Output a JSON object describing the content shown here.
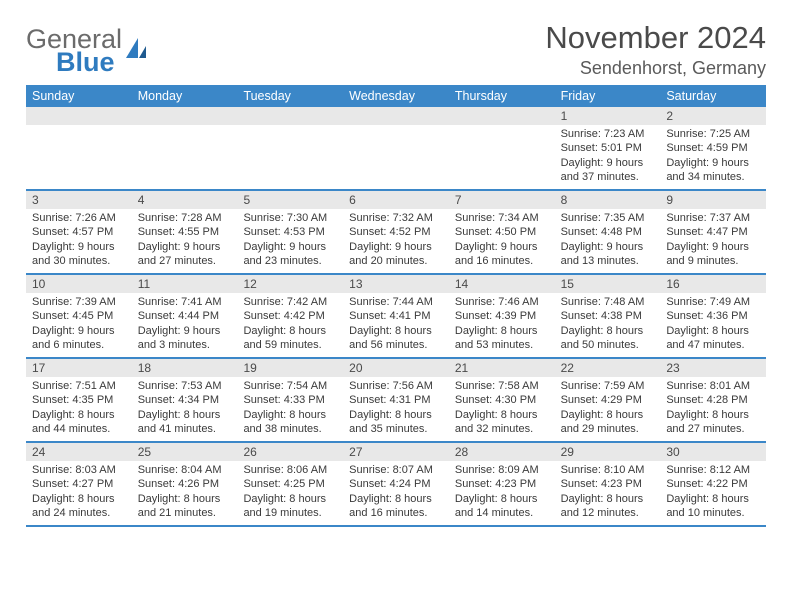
{
  "brand": {
    "line1": "General",
    "line2": "Blue"
  },
  "title": "November 2024",
  "location": "Sendenhorst, Germany",
  "colors": {
    "header_bg": "#3b87c8",
    "header_text": "#ffffff",
    "date_band": "#e8e8e8",
    "border": "#3b87c8",
    "text": "#3a3a3a"
  },
  "day_names": [
    "Sunday",
    "Monday",
    "Tuesday",
    "Wednesday",
    "Thursday",
    "Friday",
    "Saturday"
  ],
  "weeks": [
    [
      null,
      null,
      null,
      null,
      null,
      {
        "d": "1",
        "sr": "Sunrise: 7:23 AM",
        "ss": "Sunset: 5:01 PM",
        "dl1": "Daylight: 9 hours",
        "dl2": "and 37 minutes."
      },
      {
        "d": "2",
        "sr": "Sunrise: 7:25 AM",
        "ss": "Sunset: 4:59 PM",
        "dl1": "Daylight: 9 hours",
        "dl2": "and 34 minutes."
      }
    ],
    [
      {
        "d": "3",
        "sr": "Sunrise: 7:26 AM",
        "ss": "Sunset: 4:57 PM",
        "dl1": "Daylight: 9 hours",
        "dl2": "and 30 minutes."
      },
      {
        "d": "4",
        "sr": "Sunrise: 7:28 AM",
        "ss": "Sunset: 4:55 PM",
        "dl1": "Daylight: 9 hours",
        "dl2": "and 27 minutes."
      },
      {
        "d": "5",
        "sr": "Sunrise: 7:30 AM",
        "ss": "Sunset: 4:53 PM",
        "dl1": "Daylight: 9 hours",
        "dl2": "and 23 minutes."
      },
      {
        "d": "6",
        "sr": "Sunrise: 7:32 AM",
        "ss": "Sunset: 4:52 PM",
        "dl1": "Daylight: 9 hours",
        "dl2": "and 20 minutes."
      },
      {
        "d": "7",
        "sr": "Sunrise: 7:34 AM",
        "ss": "Sunset: 4:50 PM",
        "dl1": "Daylight: 9 hours",
        "dl2": "and 16 minutes."
      },
      {
        "d": "8",
        "sr": "Sunrise: 7:35 AM",
        "ss": "Sunset: 4:48 PM",
        "dl1": "Daylight: 9 hours",
        "dl2": "and 13 minutes."
      },
      {
        "d": "9",
        "sr": "Sunrise: 7:37 AM",
        "ss": "Sunset: 4:47 PM",
        "dl1": "Daylight: 9 hours",
        "dl2": "and 9 minutes."
      }
    ],
    [
      {
        "d": "10",
        "sr": "Sunrise: 7:39 AM",
        "ss": "Sunset: 4:45 PM",
        "dl1": "Daylight: 9 hours",
        "dl2": "and 6 minutes."
      },
      {
        "d": "11",
        "sr": "Sunrise: 7:41 AM",
        "ss": "Sunset: 4:44 PM",
        "dl1": "Daylight: 9 hours",
        "dl2": "and 3 minutes."
      },
      {
        "d": "12",
        "sr": "Sunrise: 7:42 AM",
        "ss": "Sunset: 4:42 PM",
        "dl1": "Daylight: 8 hours",
        "dl2": "and 59 minutes."
      },
      {
        "d": "13",
        "sr": "Sunrise: 7:44 AM",
        "ss": "Sunset: 4:41 PM",
        "dl1": "Daylight: 8 hours",
        "dl2": "and 56 minutes."
      },
      {
        "d": "14",
        "sr": "Sunrise: 7:46 AM",
        "ss": "Sunset: 4:39 PM",
        "dl1": "Daylight: 8 hours",
        "dl2": "and 53 minutes."
      },
      {
        "d": "15",
        "sr": "Sunrise: 7:48 AM",
        "ss": "Sunset: 4:38 PM",
        "dl1": "Daylight: 8 hours",
        "dl2": "and 50 minutes."
      },
      {
        "d": "16",
        "sr": "Sunrise: 7:49 AM",
        "ss": "Sunset: 4:36 PM",
        "dl1": "Daylight: 8 hours",
        "dl2": "and 47 minutes."
      }
    ],
    [
      {
        "d": "17",
        "sr": "Sunrise: 7:51 AM",
        "ss": "Sunset: 4:35 PM",
        "dl1": "Daylight: 8 hours",
        "dl2": "and 44 minutes."
      },
      {
        "d": "18",
        "sr": "Sunrise: 7:53 AM",
        "ss": "Sunset: 4:34 PM",
        "dl1": "Daylight: 8 hours",
        "dl2": "and 41 minutes."
      },
      {
        "d": "19",
        "sr": "Sunrise: 7:54 AM",
        "ss": "Sunset: 4:33 PM",
        "dl1": "Daylight: 8 hours",
        "dl2": "and 38 minutes."
      },
      {
        "d": "20",
        "sr": "Sunrise: 7:56 AM",
        "ss": "Sunset: 4:31 PM",
        "dl1": "Daylight: 8 hours",
        "dl2": "and 35 minutes."
      },
      {
        "d": "21",
        "sr": "Sunrise: 7:58 AM",
        "ss": "Sunset: 4:30 PM",
        "dl1": "Daylight: 8 hours",
        "dl2": "and 32 minutes."
      },
      {
        "d": "22",
        "sr": "Sunrise: 7:59 AM",
        "ss": "Sunset: 4:29 PM",
        "dl1": "Daylight: 8 hours",
        "dl2": "and 29 minutes."
      },
      {
        "d": "23",
        "sr": "Sunrise: 8:01 AM",
        "ss": "Sunset: 4:28 PM",
        "dl1": "Daylight: 8 hours",
        "dl2": "and 27 minutes."
      }
    ],
    [
      {
        "d": "24",
        "sr": "Sunrise: 8:03 AM",
        "ss": "Sunset: 4:27 PM",
        "dl1": "Daylight: 8 hours",
        "dl2": "and 24 minutes."
      },
      {
        "d": "25",
        "sr": "Sunrise: 8:04 AM",
        "ss": "Sunset: 4:26 PM",
        "dl1": "Daylight: 8 hours",
        "dl2": "and 21 minutes."
      },
      {
        "d": "26",
        "sr": "Sunrise: 8:06 AM",
        "ss": "Sunset: 4:25 PM",
        "dl1": "Daylight: 8 hours",
        "dl2": "and 19 minutes."
      },
      {
        "d": "27",
        "sr": "Sunrise: 8:07 AM",
        "ss": "Sunset: 4:24 PM",
        "dl1": "Daylight: 8 hours",
        "dl2": "and 16 minutes."
      },
      {
        "d": "28",
        "sr": "Sunrise: 8:09 AM",
        "ss": "Sunset: 4:23 PM",
        "dl1": "Daylight: 8 hours",
        "dl2": "and 14 minutes."
      },
      {
        "d": "29",
        "sr": "Sunrise: 8:10 AM",
        "ss": "Sunset: 4:23 PM",
        "dl1": "Daylight: 8 hours",
        "dl2": "and 12 minutes."
      },
      {
        "d": "30",
        "sr": "Sunrise: 8:12 AM",
        "ss": "Sunset: 4:22 PM",
        "dl1": "Daylight: 8 hours",
        "dl2": "and 10 minutes."
      }
    ]
  ]
}
